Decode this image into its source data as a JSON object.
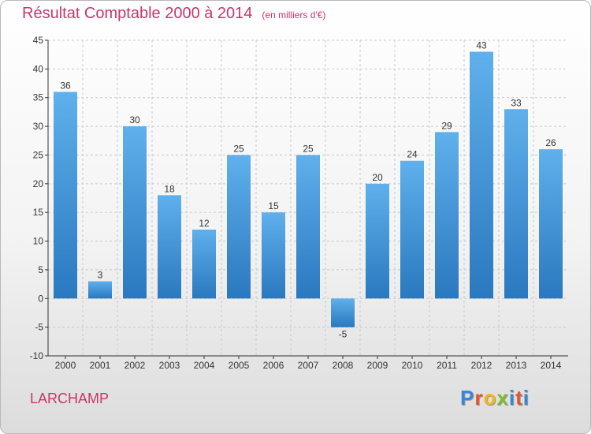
{
  "title": "Résultat Comptable 2000 à 2014",
  "subtitle": "(en milliers d'€)",
  "commune": "LARCHAMP",
  "logo": {
    "letters": [
      "P",
      "r",
      "o",
      "x",
      "i",
      "t",
      "i"
    ],
    "colors": [
      "#3a86d6",
      "#e6542c",
      "#f2b51c",
      "#7dbb2e",
      "#3a86d6",
      "#e6542c",
      "#3a86d6"
    ]
  },
  "colors": {
    "bar_top": "#5fb0ec",
    "bar_bottom": "#2a78bf",
    "axis": "#333333",
    "grid": "#c9c9c9",
    "accent": "#c8366b"
  },
  "chart_data": {
    "type": "bar",
    "title": "Résultat Comptable 2000 à 2014",
    "subtitle": "(en milliers d'€)",
    "categories": [
      "2000",
      "2001",
      "2002",
      "2003",
      "2004",
      "2005",
      "2006",
      "2007",
      "2008",
      "2009",
      "2010",
      "2011",
      "2012",
      "2013",
      "2014"
    ],
    "values": [
      36,
      3,
      30,
      18,
      12,
      25,
      15,
      25,
      -5,
      20,
      24,
      29,
      43,
      33,
      26
    ],
    "ylim": [
      -10,
      45
    ],
    "yticks": [
      -10,
      -5,
      0,
      5,
      10,
      15,
      20,
      25,
      30,
      35,
      40,
      45
    ],
    "grid": "dashed horizontal",
    "legend": "none"
  }
}
